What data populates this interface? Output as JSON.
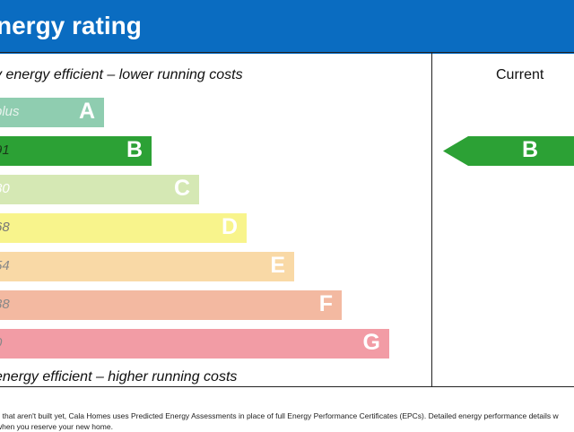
{
  "header": {
    "title": "nergy rating",
    "background_color": "#0a6cc1"
  },
  "captions": {
    "top": "y energy efficient – lower running costs",
    "bottom": " energy efficient – higher running costs"
  },
  "current_column": {
    "label": "Current",
    "rating": "B",
    "color": "#2ca135"
  },
  "footnote": {
    "line1": "s that aren't built yet, Cala Homes uses Predicted Energy Assessments in place of full Energy Performance Certificates (EPCs). Detailed energy performance details w",
    "line2": "when you reserve your new home."
  },
  "chart_data": {
    "type": "bar",
    "categories": [
      "A",
      "B",
      "C",
      "D",
      "E",
      "F",
      "G"
    ],
    "range_labels": [
      "plus",
      "91",
      "80",
      "68",
      "54",
      "38",
      "0"
    ],
    "values": [
      1,
      2,
      3,
      4,
      5,
      6,
      7
    ],
    "colors": [
      "#8fcdb0",
      "#2ca135",
      "#d5e8b4",
      "#f8f48c",
      "#f9d9a6",
      "#f3b9a1",
      "#f29ca5"
    ],
    "range_label_colors": [
      "#e6f2ec",
      "#1a3a1a",
      "#ffffff",
      "#777777",
      "#888888",
      "#888888",
      "#888888"
    ],
    "title": "",
    "xlabel": "",
    "ylabel": ""
  }
}
